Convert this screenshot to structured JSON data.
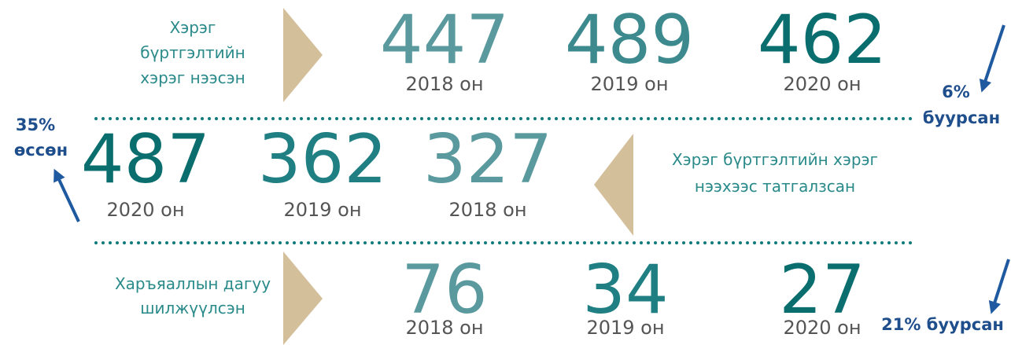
{
  "rows": [
    {
      "label": [
        "Хэрэг",
        "бүртгэлтийн",
        "хэрэг нээсэн"
      ],
      "items": [
        {
          "number": 447,
          "year": "2018 он"
        },
        {
          "number": 489,
          "year": "2019 он"
        },
        {
          "number": 462,
          "year": "2020 он"
        }
      ],
      "change": [
        "6%",
        "буурсан"
      ]
    },
    {
      "label": [
        "Хэрэг бүртгэлтийн хэрэг",
        "нээхээс татгалзсан"
      ],
      "items": [
        {
          "number": 487,
          "year": "2020 он"
        },
        {
          "number": 362,
          "year": "2019 он"
        },
        {
          "number": 327,
          "year": "2018 он"
        }
      ],
      "change": [
        "35%",
        "өссөн"
      ]
    },
    {
      "label": [
        "Харъяаллын дагуу",
        "шилжүүлсэн"
      ],
      "items": [
        {
          "number": 76,
          "year": "2018 он"
        },
        {
          "number": 34,
          "year": "2019 он"
        },
        {
          "number": 27,
          "year": "2020 он"
        }
      ],
      "change": [
        "21% буурсан"
      ]
    }
  ]
}
